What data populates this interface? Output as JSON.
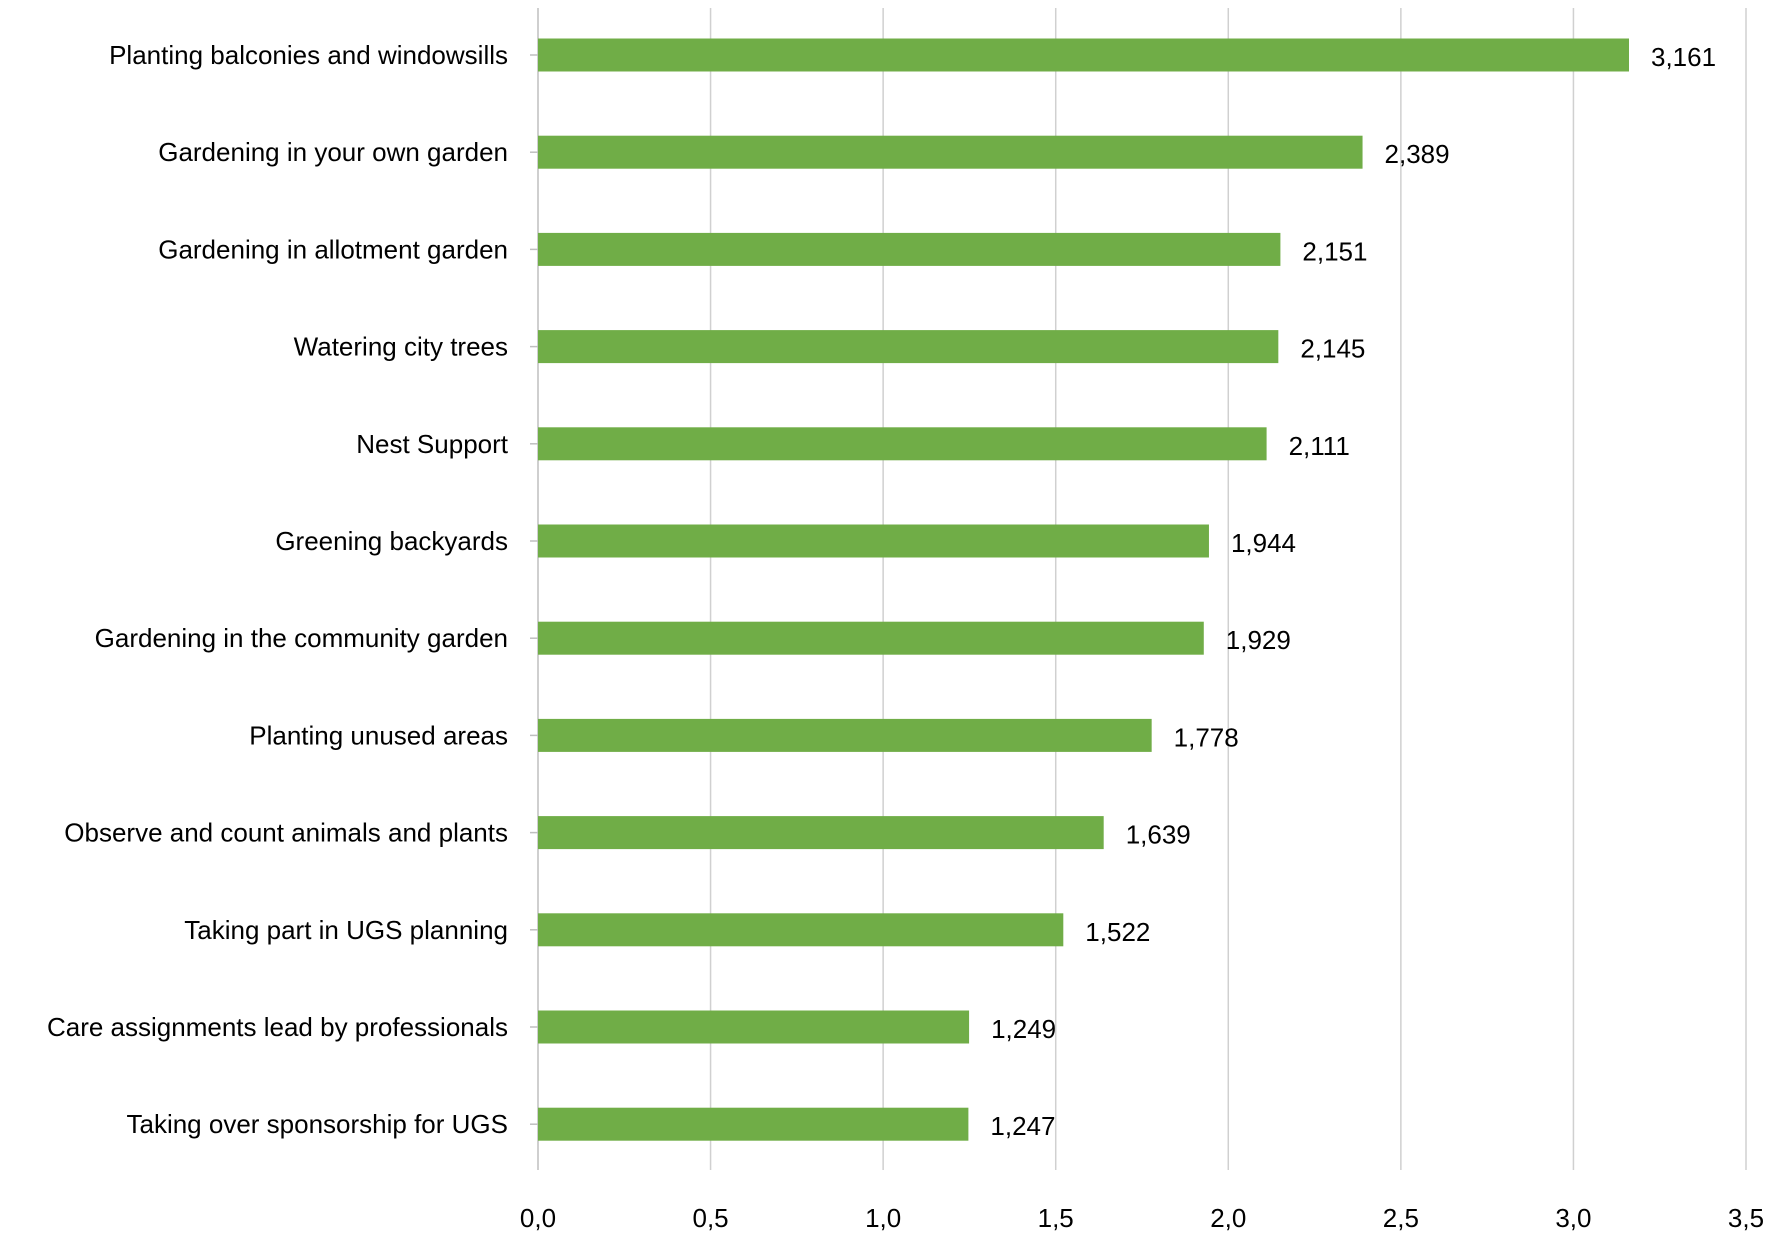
{
  "chart_data": {
    "type": "bar",
    "orientation": "horizontal",
    "title": "",
    "xlabel": "",
    "ylabel": "",
    "xlim": [
      0,
      3.5
    ],
    "x_ticks": [
      0,
      0.5,
      1.0,
      1.5,
      2.0,
      2.5,
      3.0,
      3.5
    ],
    "x_tick_labels": [
      "0,0",
      "0,5",
      "1,0",
      "1,5",
      "2,0",
      "2,5",
      "3,0",
      "3,5"
    ],
    "grid": true,
    "legend": "none",
    "bar_color": "#70ad47",
    "categories": [
      "Planting balconies and windowsills",
      "Gardening in your own garden",
      "Gardening in allotment garden",
      "Watering city trees",
      "Nest Support",
      "Greening backyards",
      "Gardening in the community garden",
      "Planting unused areas",
      "Observe and count animals and plants",
      "Taking part in UGS planning",
      "Care assignments lead by professionals",
      "Taking over sponsorship for UGS"
    ],
    "values": [
      3.161,
      2.389,
      2.151,
      2.145,
      2.111,
      1.944,
      1.929,
      1.778,
      1.639,
      1.522,
      1.249,
      1.247
    ],
    "value_labels": [
      "3,161",
      "2,389",
      "2,151",
      "2,145",
      "2,111",
      "1,944",
      "1,929",
      "1,778",
      "1,639",
      "1,522",
      "1,249",
      "1,247"
    ]
  }
}
